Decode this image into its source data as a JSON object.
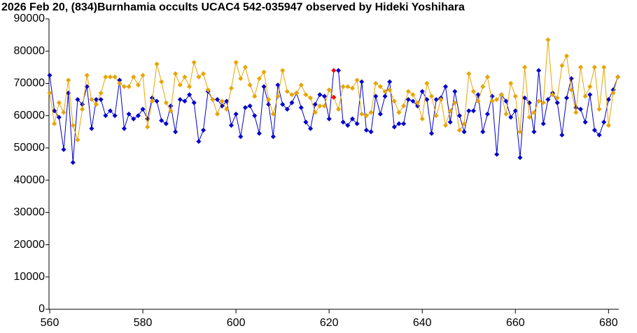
{
  "chart_data": {
    "type": "line",
    "title": "2026 Feb 20, (834)Burnhamia occults UCAC4 542-035947 observed by Hideki Yoshihara",
    "x": [
      560,
      561,
      562,
      563,
      564,
      565,
      566,
      567,
      568,
      569,
      570,
      571,
      572,
      573,
      574,
      575,
      576,
      577,
      578,
      579,
      580,
      581,
      582,
      583,
      584,
      585,
      586,
      587,
      588,
      589,
      590,
      591,
      592,
      593,
      594,
      595,
      596,
      597,
      598,
      599,
      600,
      601,
      602,
      603,
      604,
      605,
      606,
      607,
      608,
      609,
      610,
      611,
      612,
      613,
      614,
      615,
      616,
      617,
      618,
      619,
      620,
      621,
      622,
      623,
      624,
      625,
      626,
      627,
      628,
      629,
      630,
      631,
      632,
      633,
      634,
      635,
      636,
      637,
      638,
      639,
      640,
      641,
      642,
      643,
      644,
      645,
      646,
      647,
      648,
      649,
      650,
      651,
      652,
      653,
      654,
      655,
      656,
      657,
      658,
      659,
      660,
      661,
      662,
      663,
      664,
      665,
      666,
      667,
      668,
      669,
      670,
      671,
      672,
      673,
      674,
      675,
      676,
      677,
      678,
      679,
      680,
      681,
      682
    ],
    "series": [
      {
        "color": "#0000cc",
        "values": [
          72500,
          61500,
          59500,
          49500,
          67000,
          45500,
          65000,
          63500,
          69000,
          56000,
          65000,
          65000,
          60000,
          61500,
          60000,
          71000,
          56000,
          60500,
          59000,
          60000,
          62000,
          59000,
          65500,
          64500,
          58500,
          57500,
          63000,
          55000,
          65000,
          64500,
          66500,
          64000,
          52000,
          55500,
          67500,
          65000,
          65000,
          63000,
          64500,
          57000,
          60500,
          53500,
          62500,
          63000,
          60000,
          54500,
          69000,
          63500,
          53500,
          69500,
          63500,
          62000,
          64000,
          67000,
          62500,
          58000,
          56000,
          63500,
          66500,
          66000,
          59000,
          74000,
          74000,
          58000,
          57000,
          59000,
          57500,
          70500,
          55500,
          55000,
          66000,
          60500,
          66000,
          70500,
          56500,
          57500,
          57500,
          65000,
          64500,
          63000,
          67500,
          65000,
          54500,
          65000,
          65500,
          69000,
          58000,
          67500,
          60000,
          55000,
          61500,
          61500,
          66500,
          55000,
          60500,
          66000,
          48000,
          66500,
          64500,
          59500,
          61500,
          47000,
          65500,
          64000,
          55000,
          74000,
          57500,
          65000,
          67000,
          64000,
          54000,
          65500,
          71500,
          62500,
          62000,
          58000,
          66500,
          55500,
          54000,
          58000,
          65000,
          68000,
          72000
        ]
      },
      {
        "color": "#e8a400",
        "values": [
          67000,
          57500,
          64000,
          61000,
          71000,
          57000,
          52500,
          62000,
          72500,
          65000,
          63500,
          67000,
          72000,
          72000,
          72000,
          70000,
          69000,
          69000,
          72000,
          69500,
          72500,
          56500,
          64500,
          76000,
          70500,
          64000,
          61500,
          73000,
          69500,
          72000,
          69000,
          76500,
          72000,
          73000,
          68000,
          65000,
          60500,
          64500,
          62000,
          68500,
          76500,
          71500,
          75000,
          69500,
          66000,
          71500,
          73500,
          65000,
          60500,
          66000,
          74000,
          67500,
          66500,
          67000,
          69500,
          66500,
          65500,
          61000,
          63000,
          63000,
          68000,
          65700,
          62000,
          69000,
          69000,
          68500,
          71000,
          60500,
          60000,
          61000,
          70000,
          69000,
          67500,
          68000,
          64500,
          61000,
          63000,
          67500,
          66500,
          64000,
          59000,
          70000,
          66000,
          60000,
          65000,
          57000,
          61500,
          64000,
          55500,
          57500,
          73000,
          67500,
          64500,
          69000,
          72000,
          64500,
          65000,
          66500,
          60500,
          70000,
          66000,
          55000,
          75000,
          59500,
          61000,
          64500,
          64000,
          83500,
          66500,
          65500,
          75500,
          78500,
          68000,
          61000,
          75000,
          66000,
          69000,
          75000,
          62000,
          75000,
          57000,
          67000,
          72000
        ]
      }
    ],
    "highlight_x": 621,
    "highlight_color": "#ff0000",
    "xlim": [
      559.85,
      682.2
    ],
    "xticks": [
      560,
      580,
      600,
      620,
      640,
      660,
      680
    ],
    "ylim": [
      0,
      90000
    ],
    "yticks": [
      0,
      10000,
      20000,
      30000,
      40000,
      50000,
      60000,
      70000,
      80000,
      90000
    ]
  }
}
